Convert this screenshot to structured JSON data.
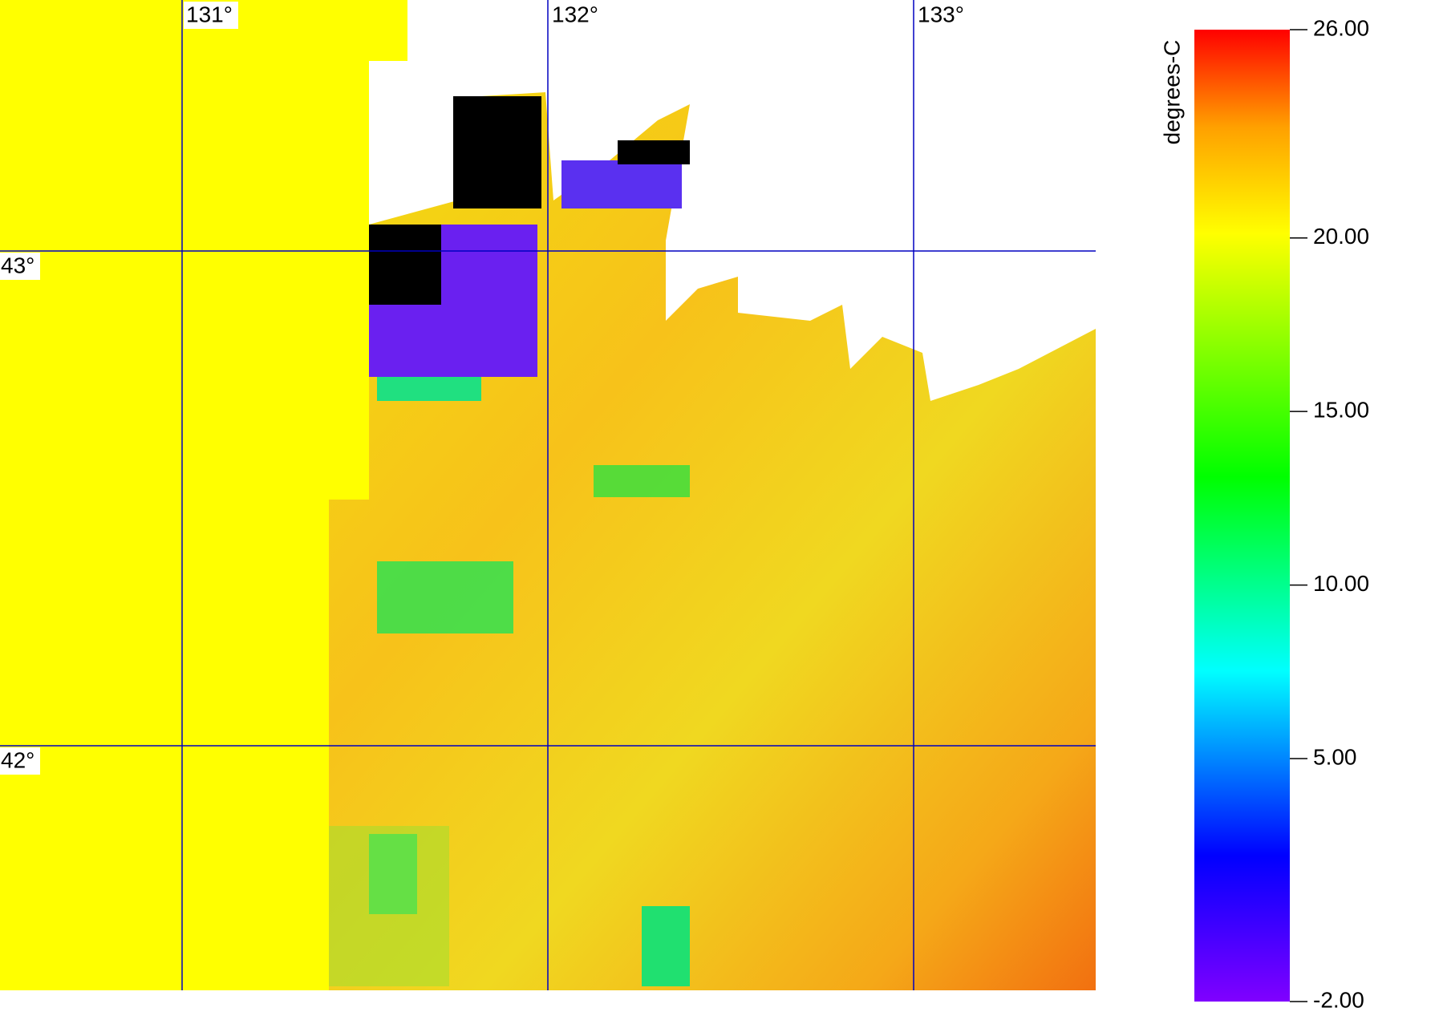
{
  "map": {
    "lon_ticks": [
      {
        "value": 131,
        "label": "131°"
      },
      {
        "value": 132,
        "label": "132°"
      },
      {
        "value": 133,
        "label": "133°"
      }
    ],
    "lat_ticks": [
      {
        "value": 43,
        "label": "43°"
      },
      {
        "value": 42,
        "label": "42°"
      }
    ]
  },
  "colorbar": {
    "label": "degrees-C",
    "lim": [
      -2,
      26
    ],
    "ticks": [
      {
        "value": 26,
        "label": "26.00"
      },
      {
        "value": 20,
        "label": "20.00"
      },
      {
        "value": 15,
        "label": "15.00"
      },
      {
        "value": 10,
        "label": "10.00"
      },
      {
        "value": 5,
        "label": "5.00"
      },
      {
        "value": -2,
        "label": "-2.00"
      }
    ]
  }
}
